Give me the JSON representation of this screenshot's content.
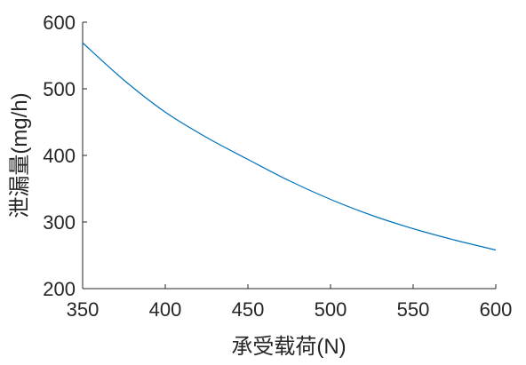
{
  "chart_data": {
    "type": "line",
    "title": "",
    "xlabel": "承受载荷(N)",
    "ylabel": "泄漏量(mg/h)",
    "xlim": [
      350,
      600
    ],
    "ylim": [
      200,
      600
    ],
    "x_ticks": [
      "350",
      "400",
      "450",
      "500",
      "550",
      "600"
    ],
    "y_ticks": [
      "200",
      "300",
      "400",
      "500",
      "600"
    ],
    "grid": false,
    "legend": "none",
    "series": [
      {
        "color": "#0072BD",
        "x": [
          350,
          375,
          400,
          425,
          450,
          475,
          500,
          525,
          550,
          575,
          600
        ],
        "y": [
          569,
          513,
          465,
          427,
          394,
          362,
          334,
          310,
          290,
          273,
          258
        ]
      }
    ]
  }
}
